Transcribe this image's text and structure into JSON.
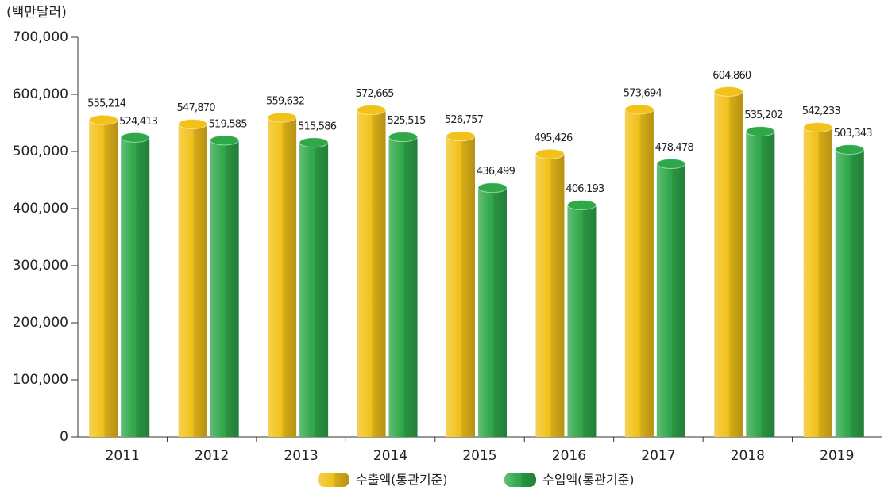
{
  "chart_data": {
    "type": "bar",
    "y_label": "(백만달러)",
    "categories": [
      "2011",
      "2012",
      "2013",
      "2014",
      "2015",
      "2016",
      "2017",
      "2018",
      "2019"
    ],
    "series": [
      {
        "name": "수출액(통관기준)",
        "color": "#f2c21a",
        "values": [
          555214,
          547870,
          559632,
          572665,
          526757,
          495426,
          573694,
          604860,
          542233
        ],
        "value_labels": [
          "555,214",
          "547,870",
          "559,632",
          "572,665",
          "526,757",
          "495,426",
          "573,694",
          "604,860",
          "542,233"
        ]
      },
      {
        "name": "수입액(통관기준)",
        "color": "#2fa84a",
        "values": [
          524413,
          519585,
          515586,
          525515,
          436499,
          406193,
          478478,
          535202,
          503343
        ],
        "value_labels": [
          "524,413",
          "519,585",
          "515,586",
          "525,515",
          "436,499",
          "406,193",
          "478,478",
          "535,202",
          "503,343"
        ]
      }
    ],
    "ylim": [
      0,
      700000
    ],
    "yticks": [
      0,
      {
        "value": 100000,
        "label": "100,000"
      },
      {
        "value": 200000,
        "label": "200,000"
      },
      {
        "value": 300000,
        "label": "300,000"
      },
      {
        "value": 400000,
        "label": "400,000"
      },
      {
        "value": 500000,
        "label": "500,000"
      },
      {
        "value": 600000,
        "label": "600,000"
      },
      {
        "value": 700000,
        "label": "700,000"
      }
    ]
  }
}
